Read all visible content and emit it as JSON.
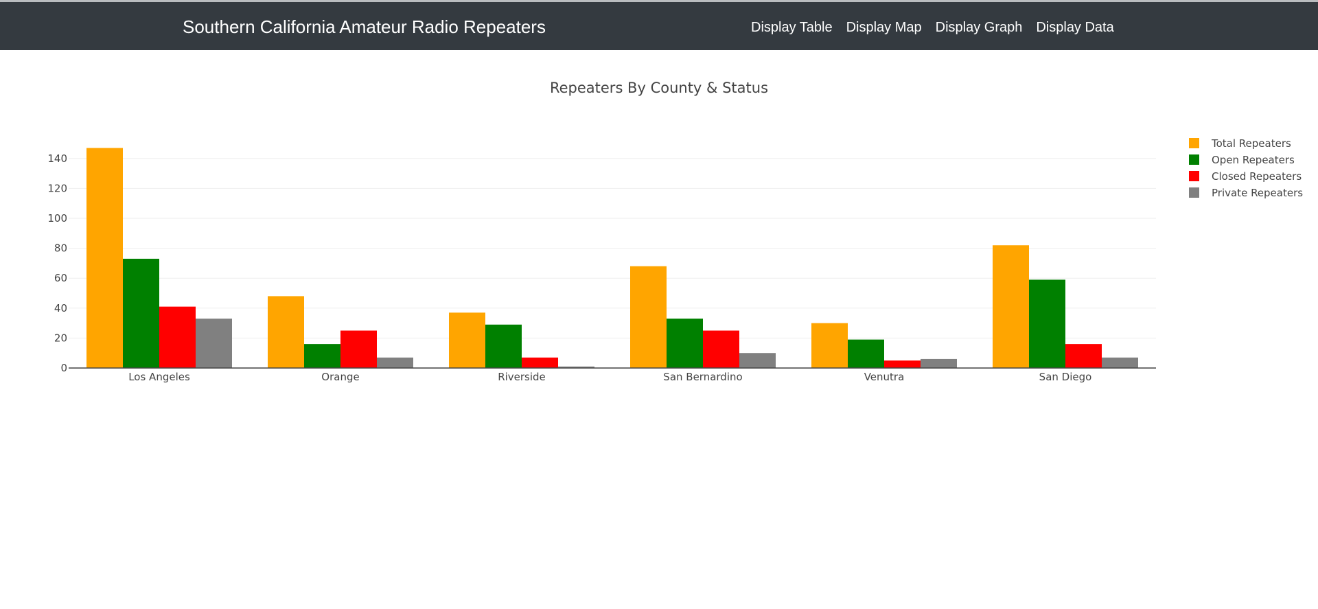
{
  "app": {
    "title": "Southern California Amateur Radio Repeaters",
    "nav": [
      {
        "label": "Display Table"
      },
      {
        "label": "Display Map"
      },
      {
        "label": "Display Graph"
      },
      {
        "label": "Display Data"
      }
    ]
  },
  "chart_data": {
    "type": "bar",
    "title": "Repeaters By County & Status",
    "xlabel": "",
    "ylabel": "",
    "ylim": [
      0,
      150
    ],
    "yticks": [
      0,
      20,
      40,
      60,
      80,
      100,
      120,
      140
    ],
    "grid": true,
    "legend_position": "top-right",
    "categories": [
      "Los Angeles",
      "Orange",
      "Riverside",
      "San Bernardino",
      "Venutra",
      "San Diego"
    ],
    "series": [
      {
        "name": "Total Repeaters",
        "color": "#ffa500",
        "values": [
          147,
          48,
          37,
          68,
          30,
          82
        ]
      },
      {
        "name": "Open Repeaters",
        "color": "#008000",
        "values": [
          73,
          16,
          29,
          33,
          19,
          59
        ]
      },
      {
        "name": "Closed Repeaters",
        "color": "#ff0000",
        "values": [
          41,
          25,
          7,
          25,
          5,
          16
        ]
      },
      {
        "name": "Private Repeaters",
        "color": "#808080",
        "values": [
          33,
          7,
          1,
          10,
          6,
          7
        ]
      }
    ]
  }
}
